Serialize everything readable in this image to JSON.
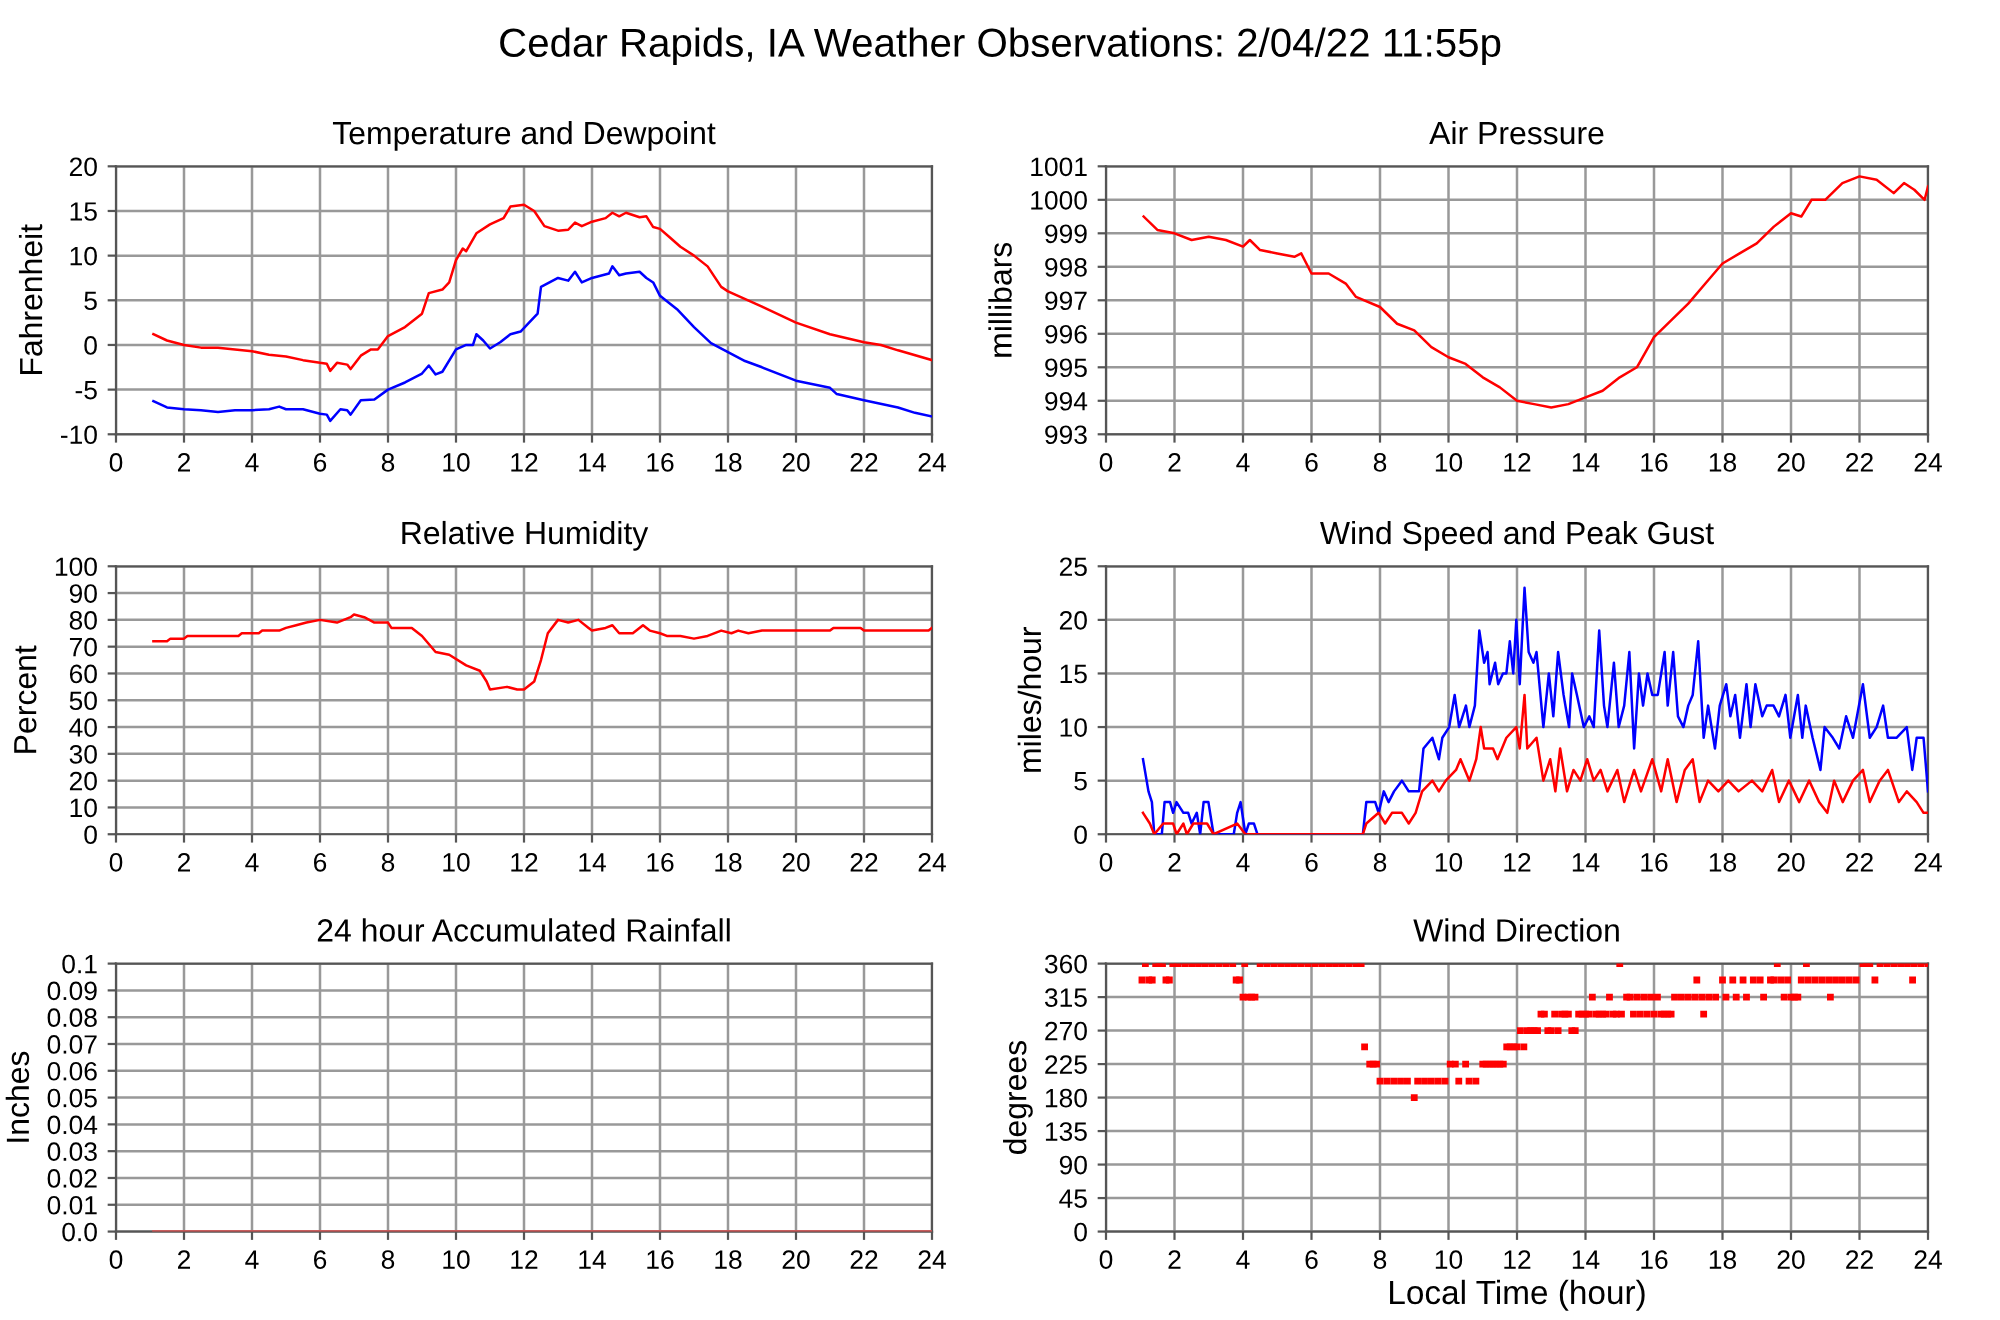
{
  "chart_data": [
    {
      "type": "line",
      "title": "Temperature and Dewpoint",
      "ylabel": "Fahrenheit",
      "annotations": [
        "Cedar Rapids, IA Weather Observations: 2/04/22 11:55p"
      ],
      "xlim": [
        0,
        24
      ],
      "xticks": [
        0,
        2,
        4,
        6,
        8,
        10,
        12,
        14,
        16,
        18,
        20,
        22,
        24
      ],
      "ylim": [
        -10,
        20
      ],
      "yticks": [
        -10,
        -5,
        0,
        5,
        10,
        15,
        20
      ],
      "grid": true,
      "series": [
        {
          "color": "#ff0000",
          "x": [
            1.1,
            1.5,
            2,
            2.5,
            3,
            3.5,
            4,
            4.5,
            5,
            5.5,
            6,
            6.2,
            6.3,
            6.5,
            6.8,
            6.9,
            7.2,
            7.5,
            7.7,
            8,
            8.5,
            9,
            9.2,
            9.6,
            9.8,
            10,
            10.2,
            10.3,
            10.6,
            11,
            11.4,
            11.6,
            12,
            12.3,
            12.6,
            13,
            13.3,
            13.5,
            13.7,
            14,
            14.4,
            14.6,
            14.8,
            15,
            15.4,
            15.6,
            15.8,
            16,
            16.3,
            16.6,
            17,
            17.4,
            17.8,
            18,
            19,
            20,
            21,
            22,
            22.5,
            23,
            24
          ],
          "values": [
            1.2,
            0.5,
            0,
            -0.3,
            -0.3,
            -0.5,
            -0.7,
            -1.1,
            -1.3,
            -1.7,
            -2,
            -2.1,
            -2.9,
            -2,
            -2.2,
            -2.7,
            -1.2,
            -0.5,
            -0.5,
            1,
            2,
            3.5,
            5.8,
            6.2,
            7,
            9.5,
            10.8,
            10.5,
            12.5,
            13.5,
            14.2,
            15.5,
            15.7,
            15,
            13.3,
            12.8,
            12.9,
            13.7,
            13.3,
            13.8,
            14.2,
            14.8,
            14.4,
            14.8,
            14.3,
            14.4,
            13.2,
            13,
            12,
            11,
            10,
            8.8,
            6.5,
            6,
            4.3,
            2.5,
            1.2,
            0.3,
            0,
            -0.6,
            -1.7
          ]
        },
        {
          "color": "#0000ff",
          "x": [
            1.1,
            1.5,
            2,
            2.5,
            3,
            3.5,
            4,
            4.5,
            4.8,
            5,
            5.5,
            6,
            6.2,
            6.3,
            6.6,
            6.8,
            6.9,
            7.2,
            7.6,
            8,
            8.5,
            9,
            9.2,
            9.4,
            9.6,
            10,
            10.3,
            10.5,
            10.6,
            10.8,
            11,
            11.3,
            11.6,
            11.9,
            12.1,
            12.4,
            12.5,
            13,
            13.3,
            13.5,
            13.7,
            14,
            14.5,
            14.6,
            14.8,
            15,
            15.4,
            15.6,
            15.8,
            16,
            16.5,
            17,
            17.5,
            18,
            18.5,
            19,
            20,
            21,
            21.2,
            22,
            23,
            23.5,
            24
          ],
          "values": [
            -6.3,
            -7,
            -7.2,
            -7.3,
            -7.5,
            -7.3,
            -7.3,
            -7.2,
            -6.9,
            -7.2,
            -7.2,
            -7.7,
            -7.8,
            -8.5,
            -7.2,
            -7.3,
            -7.8,
            -6.2,
            -6.1,
            -5,
            -4.2,
            -3.2,
            -2.3,
            -3.3,
            -3,
            -0.5,
            0,
            0,
            1.2,
            0.5,
            -0.4,
            0.3,
            1.2,
            1.5,
            2.3,
            3.5,
            6.5,
            7.5,
            7.2,
            8.2,
            7,
            7.5,
            8,
            8.8,
            7.8,
            8,
            8.2,
            7.5,
            7,
            5.5,
            4,
            2,
            0.2,
            -0.8,
            -1.8,
            -2.5,
            -4,
            -4.8,
            -5.5,
            -6.2,
            -7,
            -7.6,
            -8
          ]
        }
      ]
    },
    {
      "type": "line",
      "title": "Air Pressure",
      "ylabel": "millibars",
      "xlim": [
        0,
        24
      ],
      "xticks": [
        0,
        2,
        4,
        6,
        8,
        10,
        12,
        14,
        16,
        18,
        20,
        22,
        24
      ],
      "ylim": [
        993,
        1001
      ],
      "yticks": [
        993,
        994,
        995,
        996,
        997,
        998,
        999,
        1000,
        1001
      ],
      "grid": true,
      "series": [
        {
          "color": "#ff0000",
          "x": [
            1.1,
            1.5,
            2,
            2.5,
            3,
            3.5,
            4,
            4.2,
            4.5,
            5,
            5.5,
            5.7,
            6,
            6.5,
            7,
            7.3,
            8,
            8.5,
            9,
            9.5,
            10,
            10.5,
            11,
            11.5,
            12,
            12.5,
            13,
            13.5,
            14,
            14.5,
            15,
            15.5,
            16,
            16.5,
            17,
            17.5,
            18,
            18.5,
            19,
            19.5,
            20,
            20.3,
            20.6,
            21,
            21.5,
            22,
            22.5,
            23,
            23.3,
            23.6,
            23.9,
            24
          ],
          "values": [
            999.5,
            999.1,
            999.0,
            998.8,
            998.9,
            998.8,
            998.6,
            998.8,
            998.5,
            998.4,
            998.3,
            998.4,
            997.8,
            997.8,
            997.5,
            997.1,
            996.8,
            996.3,
            996.1,
            995.6,
            995.3,
            995.1,
            994.7,
            994.4,
            994.0,
            993.9,
            993.8,
            993.9,
            994.1,
            994.3,
            994.7,
            995.0,
            995.9,
            996.4,
            996.9,
            997.5,
            998.1,
            998.4,
            998.7,
            999.2,
            999.6,
            999.5,
            1000.0,
            1000.0,
            1000.5,
            1000.7,
            1000.6,
            1000.2,
            1000.5,
            1000.3,
            1000.0,
            1000.4
          ]
        }
      ]
    },
    {
      "type": "line",
      "title": "Relative Humidity",
      "ylabel": "Percent",
      "xlim": [
        0,
        24
      ],
      "xticks": [
        0,
        2,
        4,
        6,
        8,
        10,
        12,
        14,
        16,
        18,
        20,
        22,
        24
      ],
      "ylim": [
        0,
        100
      ],
      "yticks": [
        0,
        10,
        20,
        30,
        40,
        50,
        60,
        70,
        80,
        90,
        100
      ],
      "grid": true,
      "series": [
        {
          "color": "#ff0000",
          "x": [
            1.1,
            1.5,
            1.6,
            2,
            2.1,
            3,
            3.6,
            3.7,
            4.2,
            4.3,
            4.8,
            5,
            5.3,
            5.6,
            6,
            6.5,
            6.9,
            7,
            7.3,
            7.6,
            8,
            8.1,
            8.7,
            9,
            9.4,
            9.8,
            10.3,
            10.7,
            10.9,
            11,
            11.5,
            11.8,
            12,
            12.3,
            12.5,
            12.7,
            13,
            13.3,
            13.6,
            13.9,
            14,
            14.4,
            14.6,
            14.8,
            15.2,
            15.5,
            15.7,
            16,
            16.2,
            16.6,
            17,
            17.4,
            17.8,
            18.1,
            18.3,
            18.6,
            19,
            21,
            21.1,
            21.9,
            22,
            23.9,
            24
          ],
          "values": [
            72,
            72,
            73,
            73,
            74,
            74,
            74,
            75,
            75,
            76,
            76,
            77,
            78,
            79,
            80,
            79,
            81,
            82,
            81,
            79,
            79,
            77,
            77,
            74,
            68,
            67,
            63,
            61,
            57,
            54,
            55,
            54,
            54,
            57,
            65,
            75,
            80,
            79,
            80,
            77,
            76,
            77,
            78,
            75,
            75,
            78,
            76,
            75,
            74,
            74,
            73,
            74,
            76,
            75,
            76,
            75,
            76,
            76,
            77,
            77,
            76,
            76,
            77
          ]
        }
      ]
    },
    {
      "type": "line",
      "title": "Wind Speed and Peak Gust",
      "ylabel": "miles/hour",
      "xlim": [
        0,
        24
      ],
      "xticks": [
        0,
        2,
        4,
        6,
        8,
        10,
        12,
        14,
        16,
        18,
        20,
        22,
        24
      ],
      "ylim": [
        0,
        25
      ],
      "yticks": [
        0,
        5,
        10,
        15,
        20,
        25
      ],
      "grid": true,
      "series": [
        {
          "color": "#0000ff",
          "x": [
            1.08,
            1.24,
            1.34,
            1.41,
            1.63,
            1.71,
            1.87,
            1.96,
            2.06,
            2.26,
            2.4,
            2.5,
            2.65,
            2.75,
            2.85,
            2.99,
            3.14,
            3.73,
            3.83,
            3.93,
            4.07,
            4.17,
            4.32,
            4.42,
            7.5,
            7.6,
            7.86,
            7.96,
            8.11,
            8.25,
            8.41,
            8.64,
            8.84,
            9.14,
            9.27,
            9.53,
            9.72,
            9.82,
            10.02,
            10.18,
            10.31,
            10.51,
            10.61,
            10.77,
            10.9,
            11.04,
            11.14,
            11.2,
            11.36,
            11.45,
            11.59,
            11.69,
            11.79,
            11.89,
            11.98,
            12.08,
            12.22,
            12.34,
            12.48,
            12.57,
            12.77,
            12.93,
            13.06,
            13.2,
            13.36,
            13.52,
            13.61,
            13.75,
            13.95,
            14.11,
            14.24,
            14.4,
            14.54,
            14.64,
            14.83,
            14.97,
            15.13,
            15.28,
            15.42,
            15.56,
            15.68,
            15.81,
            15.95,
            16.11,
            16.31,
            16.4,
            16.56,
            16.7,
            16.86,
            17.0,
            17.13,
            17.29,
            17.45,
            17.58,
            17.78,
            17.92,
            18.11,
            18.23,
            18.37,
            18.51,
            18.7,
            18.82,
            18.96,
            19.16,
            19.29,
            19.49,
            19.65,
            19.84,
            19.98,
            20.2,
            20.33,
            20.43,
            20.63,
            20.86,
            20.98,
            21.22,
            21.41,
            21.61,
            21.81,
            22.1,
            22.3,
            22.5,
            22.69,
            22.83,
            23.08,
            23.38,
            23.54,
            23.67,
            23.87,
            24.0
          ],
          "values": [
            7,
            4,
            3,
            0,
            0,
            3,
            3,
            2,
            3,
            2,
            2,
            1,
            2,
            0,
            3,
            3,
            0,
            0,
            2,
            3,
            0,
            1,
            1,
            0,
            0,
            3,
            3,
            2,
            4,
            3,
            4,
            5,
            4,
            4,
            8,
            9,
            7,
            9,
            10,
            13,
            10,
            12,
            10,
            12,
            19,
            16,
            17,
            14,
            16,
            14,
            15,
            15,
            18,
            15,
            20,
            14,
            23,
            17,
            16,
            17,
            10,
            15,
            11,
            17,
            13,
            10,
            15,
            13,
            10,
            11,
            10,
            19,
            12,
            10,
            16,
            10,
            12,
            17,
            8,
            15,
            12,
            15,
            13,
            13,
            17,
            12,
            17,
            11,
            10,
            12,
            13,
            18,
            9,
            12,
            8,
            12,
            14,
            11,
            13,
            9,
            14,
            10,
            14,
            11,
            12,
            12,
            11,
            13,
            9,
            13,
            9,
            12,
            9,
            6,
            10,
            9,
            8,
            11,
            9,
            14,
            9,
            10,
            12,
            9,
            9,
            10,
            6,
            9,
            9,
            4
          ]
        },
        {
          "color": "#ff0000",
          "x": [
            1.08,
            1.28,
            1.41,
            1.67,
            1.96,
            2.06,
            2.26,
            2.36,
            2.55,
            2.95,
            3.14,
            3.83,
            4.07,
            4.42,
            7.5,
            7.6,
            7.96,
            8.15,
            8.35,
            8.64,
            8.84,
            9.04,
            9.23,
            9.53,
            9.72,
            9.92,
            10.22,
            10.35,
            10.61,
            10.81,
            10.94,
            11.04,
            11.3,
            11.43,
            11.69,
            11.98,
            12.08,
            12.22,
            12.3,
            12.57,
            12.77,
            12.97,
            13.12,
            13.26,
            13.46,
            13.65,
            13.85,
            14.05,
            14.24,
            14.44,
            14.64,
            14.93,
            15.13,
            15.42,
            15.62,
            15.95,
            16.21,
            16.4,
            16.66,
            16.9,
            17.13,
            17.33,
            17.58,
            17.88,
            18.17,
            18.47,
            18.86,
            19.16,
            19.45,
            19.65,
            19.94,
            20.24,
            20.53,
            20.82,
            21.06,
            21.26,
            21.51,
            21.81,
            22.1,
            22.3,
            22.59,
            22.83,
            23.15,
            23.38,
            23.67,
            23.87,
            24.0
          ],
          "values": [
            2,
            1,
            0,
            1,
            1,
            0,
            1,
            0,
            1,
            1,
            0,
            1,
            0,
            0,
            0,
            1,
            2,
            1,
            2,
            2,
            1,
            2,
            4,
            5,
            4,
            5,
            6,
            7,
            5,
            7,
            10,
            8,
            8,
            7,
            9,
            10,
            8,
            13,
            8,
            9,
            5,
            7,
            4,
            8,
            4,
            6,
            5,
            7,
            5,
            6,
            4,
            6,
            3,
            6,
            4,
            7,
            4,
            7,
            3,
            6,
            7,
            3,
            5,
            4,
            5,
            4,
            5,
            4,
            6,
            3,
            5,
            3,
            5,
            3,
            2,
            5,
            3,
            5,
            6,
            3,
            5,
            6,
            3,
            4,
            3,
            2,
            2
          ]
        }
      ]
    },
    {
      "type": "line",
      "title": "24 hour Accumulated Rainfall",
      "ylabel": "Inches",
      "xlim": [
        0,
        24
      ],
      "xticks": [
        0,
        2,
        4,
        6,
        8,
        10,
        12,
        14,
        16,
        18,
        20,
        22,
        24
      ],
      "ylim": [
        0,
        0.1
      ],
      "yticks": [
        {
          "value": 0,
          "label": "0.0"
        },
        0.01,
        0.02,
        0.03,
        0.04,
        0.05,
        0.06,
        0.07,
        0.08,
        0.09,
        0.1
      ],
      "grid": true,
      "series": [
        {
          "color": "#e05050",
          "x": [
            1.1,
            24
          ],
          "values": [
            0,
            0
          ]
        }
      ]
    },
    {
      "type": "scatter",
      "title": "Wind Direction",
      "ylabel": "degrees",
      "xlabel": "Local Time (hour)",
      "marker": "square",
      "xlim": [
        0,
        24
      ],
      "xticks": [
        0,
        2,
        4,
        6,
        8,
        10,
        12,
        14,
        16,
        18,
        20,
        22,
        24
      ],
      "ylim": [
        0,
        360
      ],
      "yticks": [
        0,
        45,
        90,
        135,
        180,
        225,
        270,
        315,
        360
      ],
      "grid": true,
      "series": [
        {
          "color": "#ff0000",
          "x": [
            1.05,
            1.15,
            1.25,
            1.35,
            1.45,
            1.55,
            1.65,
            1.75,
            1.85,
            1.95,
            2.1,
            2.3,
            2.5,
            2.7,
            2.9,
            3.1,
            3.3,
            3.5,
            3.7,
            3.8,
            3.9,
            4.0,
            4.05,
            4.15,
            4.25,
            4.35,
            4.5,
            4.7,
            4.9,
            5.1,
            5.3,
            5.5,
            5.7,
            5.9,
            6.1,
            6.3,
            6.5,
            6.7,
            6.9,
            7.1,
            7.3,
            7.45,
            7.55,
            7.7,
            7.8,
            7.9,
            8.0,
            8.2,
            8.4,
            8.6,
            8.8,
            9.0,
            9.1,
            9.3,
            9.5,
            9.7,
            9.9,
            10.05,
            10.2,
            10.3,
            10.5,
            10.6,
            10.8,
            11.0,
            11.1,
            11.2,
            11.3,
            11.4,
            11.5,
            11.6,
            11.7,
            11.8,
            11.9,
            12.0,
            12.1,
            12.2,
            12.3,
            12.4,
            12.5,
            12.6,
            12.7,
            12.8,
            12.9,
            13.0,
            13.1,
            13.2,
            13.3,
            13.4,
            13.5,
            13.6,
            13.7,
            13.8,
            13.9,
            14.0,
            14.1,
            14.2,
            14.3,
            14.4,
            14.5,
            14.6,
            14.7,
            14.8,
            14.9,
            15.0,
            15.05,
            15.2,
            15.3,
            15.4,
            15.5,
            15.6,
            15.7,
            15.8,
            15.9,
            16.0,
            16.1,
            16.2,
            16.3,
            16.4,
            16.5,
            16.6,
            16.8,
            17.0,
            17.2,
            17.25,
            17.4,
            17.45,
            17.6,
            17.8,
            18.0,
            18.1,
            18.3,
            18.4,
            18.6,
            18.7,
            18.9,
            19.1,
            19.2,
            19.4,
            19.5,
            19.6,
            19.7,
            19.8,
            19.9,
            20.0,
            20.1,
            20.2,
            20.3,
            20.45,
            20.5,
            20.7,
            20.9,
            21.1,
            21.15,
            21.3,
            21.5,
            21.7,
            21.9,
            22.1,
            22.2,
            22.3,
            22.45,
            22.6,
            22.8,
            23.0,
            23.2,
            23.4,
            23.55,
            23.6,
            23.8,
            24.0
          ],
          "values": [
            338,
            360,
            338,
            338,
            360,
            360,
            360,
            338,
            338,
            360,
            360,
            360,
            360,
            360,
            360,
            360,
            360,
            360,
            360,
            338,
            338,
            315,
            360,
            315,
            315,
            315,
            360,
            360,
            360,
            360,
            360,
            360,
            360,
            360,
            360,
            360,
            360,
            360,
            360,
            360,
            360,
            360,
            248,
            225,
            225,
            225,
            202,
            202,
            202,
            202,
            202,
            180,
            202,
            202,
            202,
            202,
            202,
            225,
            225,
            202,
            225,
            202,
            202,
            225,
            225,
            225,
            225,
            225,
            225,
            225,
            248,
            248,
            248,
            248,
            270,
            248,
            270,
            270,
            270,
            270,
            292,
            292,
            270,
            270,
            292,
            270,
            292,
            292,
            292,
            270,
            270,
            292,
            292,
            292,
            292,
            315,
            292,
            292,
            292,
            292,
            315,
            292,
            292,
            360,
            292,
            315,
            315,
            292,
            315,
            292,
            315,
            292,
            315,
            292,
            315,
            292,
            292,
            292,
            292,
            315,
            315,
            315,
            315,
            338,
            315,
            292,
            315,
            315,
            338,
            315,
            338,
            315,
            338,
            315,
            338,
            338,
            315,
            338,
            338,
            360,
            338,
            315,
            338,
            315,
            315,
            315,
            338,
            360,
            338,
            338,
            338,
            338,
            315,
            338,
            338,
            338,
            338,
            360,
            360,
            360,
            338,
            360,
            360,
            360,
            360,
            360,
            338,
            360,
            360,
            360
          ]
        }
      ]
    }
  ]
}
